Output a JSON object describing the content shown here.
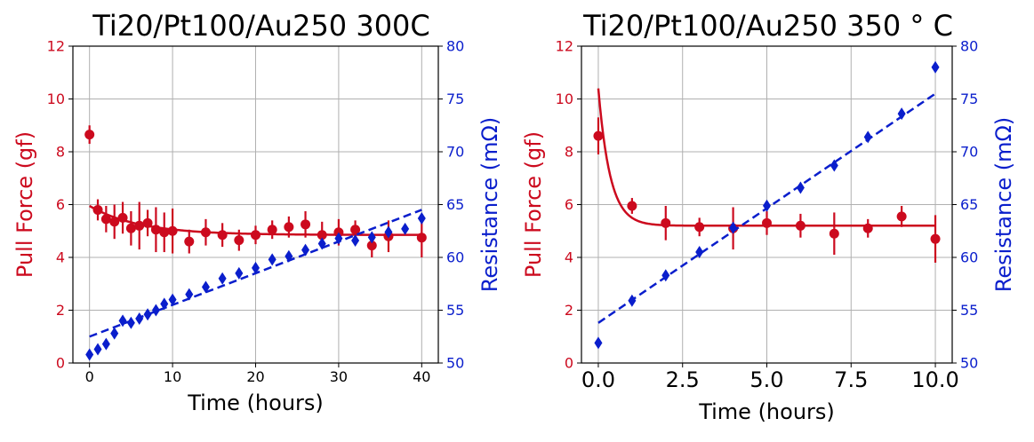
{
  "chart_data": [
    {
      "type": "scatter",
      "title": "Ti20/Pt100/Au250 300C",
      "xlabel": "Time (hours)",
      "ylabel_left": "Pull Force (gf)",
      "ylabel_right": "Resistance (mΩ)",
      "xlim": [
        -2,
        42
      ],
      "ylim_left": [
        0,
        12
      ],
      "ylim_right": [
        50,
        80
      ],
      "xticks": [
        0,
        10,
        20,
        30,
        40
      ],
      "xtick_labels": [
        "0",
        "10",
        "20",
        "30",
        "40"
      ],
      "yticks_left": [
        0,
        2,
        4,
        6,
        8,
        10,
        12
      ],
      "yticks_left_labels": [
        "0",
        "2",
        "4",
        "6",
        "8",
        "10",
        "12"
      ],
      "yticks_right": [
        50,
        55,
        60,
        65,
        70,
        75,
        80
      ],
      "yticks_right_labels": [
        "50",
        "55",
        "60",
        "65",
        "70",
        "75",
        "80"
      ],
      "grid": true,
      "colors": {
        "force": "#cc0a1e",
        "resistance": "#0a1ecc"
      },
      "series": [
        {
          "name": "Pull Force",
          "axis": "left",
          "marker": "circle",
          "x": [
            0,
            1,
            2,
            3,
            4,
            5,
            6,
            7,
            8,
            9,
            10,
            12,
            14,
            16,
            18,
            20,
            22,
            24,
            26,
            28,
            30,
            32,
            34,
            36,
            40
          ],
          "y": [
            8.65,
            5.8,
            5.45,
            5.35,
            5.5,
            5.1,
            5.2,
            5.3,
            5.05,
            4.95,
            5.0,
            4.6,
            4.95,
            4.85,
            4.65,
            4.85,
            5.05,
            5.15,
            5.25,
            4.85,
            4.95,
            5.05,
            4.45,
            4.8,
            4.75
          ],
          "yerr": [
            0.35,
            0.4,
            0.5,
            0.65,
            0.6,
            0.65,
            0.9,
            0.5,
            0.85,
            0.75,
            0.85,
            0.45,
            0.5,
            0.45,
            0.4,
            0.35,
            0.35,
            0.4,
            0.5,
            0.5,
            0.5,
            0.35,
            0.45,
            0.6,
            0.75
          ]
        },
        {
          "name": "Pull Force fit",
          "axis": "left",
          "style": "solid-line",
          "model": "exp_decay",
          "params": {
            "a": 1.1,
            "tau": 6,
            "c": 4.85
          },
          "x_range": [
            0,
            40
          ]
        },
        {
          "name": "Resistance",
          "axis": "right",
          "marker": "diamond",
          "x": [
            0,
            1,
            2,
            3,
            4,
            5,
            6,
            7,
            8,
            9,
            10,
            12,
            14,
            16,
            18,
            20,
            22,
            24,
            26,
            28,
            30,
            32,
            34,
            36,
            38,
            40
          ],
          "y": [
            50.8,
            51.3,
            51.8,
            52.8,
            54.0,
            53.8,
            54.2,
            54.6,
            55.0,
            55.6,
            56.0,
            56.5,
            57.2,
            58.0,
            58.5,
            59.0,
            59.8,
            60.1,
            60.7,
            61.3,
            61.8,
            61.6,
            61.9,
            62.4,
            62.7,
            63.7
          ]
        },
        {
          "name": "Resistance fit",
          "axis": "right",
          "style": "dashed-line",
          "x": [
            0,
            40
          ],
          "y": [
            52.5,
            64.5
          ]
        }
      ]
    },
    {
      "type": "scatter",
      "title": "Ti20/Pt100/Au250 350 ° C",
      "xlabel": "Time (hours)",
      "ylabel_left": "Pull Force (gf)",
      "ylabel_right": "Resistance (mΩ)",
      "xlim": [
        -0.5,
        10.5
      ],
      "ylim_left": [
        0,
        12
      ],
      "ylim_right": [
        50,
        80
      ],
      "xticks": [
        0,
        2.5,
        5,
        7.5,
        10
      ],
      "xtick_labels": [
        "0.0",
        "2.5",
        "5.0",
        "7.5",
        "10.0"
      ],
      "yticks_left": [
        0,
        2,
        4,
        6,
        8,
        10,
        12
      ],
      "yticks_left_labels": [
        "0",
        "2",
        "4",
        "6",
        "8",
        "10",
        "12"
      ],
      "yticks_right": [
        50,
        55,
        60,
        65,
        70,
        75,
        80
      ],
      "yticks_right_labels": [
        "50",
        "55",
        "60",
        "65",
        "70",
        "75",
        "80"
      ],
      "grid": true,
      "colors": {
        "force": "#cc0a1e",
        "resistance": "#0a1ecc"
      },
      "series": [
        {
          "name": "Pull Force",
          "axis": "left",
          "marker": "circle",
          "x": [
            0,
            1,
            2,
            3,
            4,
            5,
            6,
            7,
            8,
            9,
            10
          ],
          "y": [
            8.6,
            5.95,
            5.3,
            5.15,
            5.1,
            5.3,
            5.2,
            4.9,
            5.1,
            5.55,
            4.7
          ],
          "yerr": [
            0.7,
            0.3,
            0.65,
            0.35,
            0.8,
            0.45,
            0.45,
            0.8,
            0.35,
            0.4,
            0.9
          ]
        },
        {
          "name": "Pull Force fit",
          "axis": "left",
          "style": "solid-line",
          "model": "exp_decay",
          "params": {
            "a": 5.2,
            "tau": 0.35,
            "c": 5.2
          },
          "x_range": [
            0,
            10
          ]
        },
        {
          "name": "Resistance",
          "axis": "right",
          "marker": "diamond",
          "x": [
            0,
            1,
            2,
            3,
            4,
            5,
            6,
            7,
            8,
            9,
            10
          ],
          "y": [
            51.9,
            55.9,
            58.3,
            60.5,
            62.8,
            64.9,
            66.6,
            68.7,
            71.4,
            73.6,
            78.0
          ]
        },
        {
          "name": "Resistance fit",
          "axis": "right",
          "style": "dashed-line",
          "x": [
            0,
            10
          ],
          "y": [
            53.8,
            75.5
          ]
        }
      ]
    }
  ]
}
